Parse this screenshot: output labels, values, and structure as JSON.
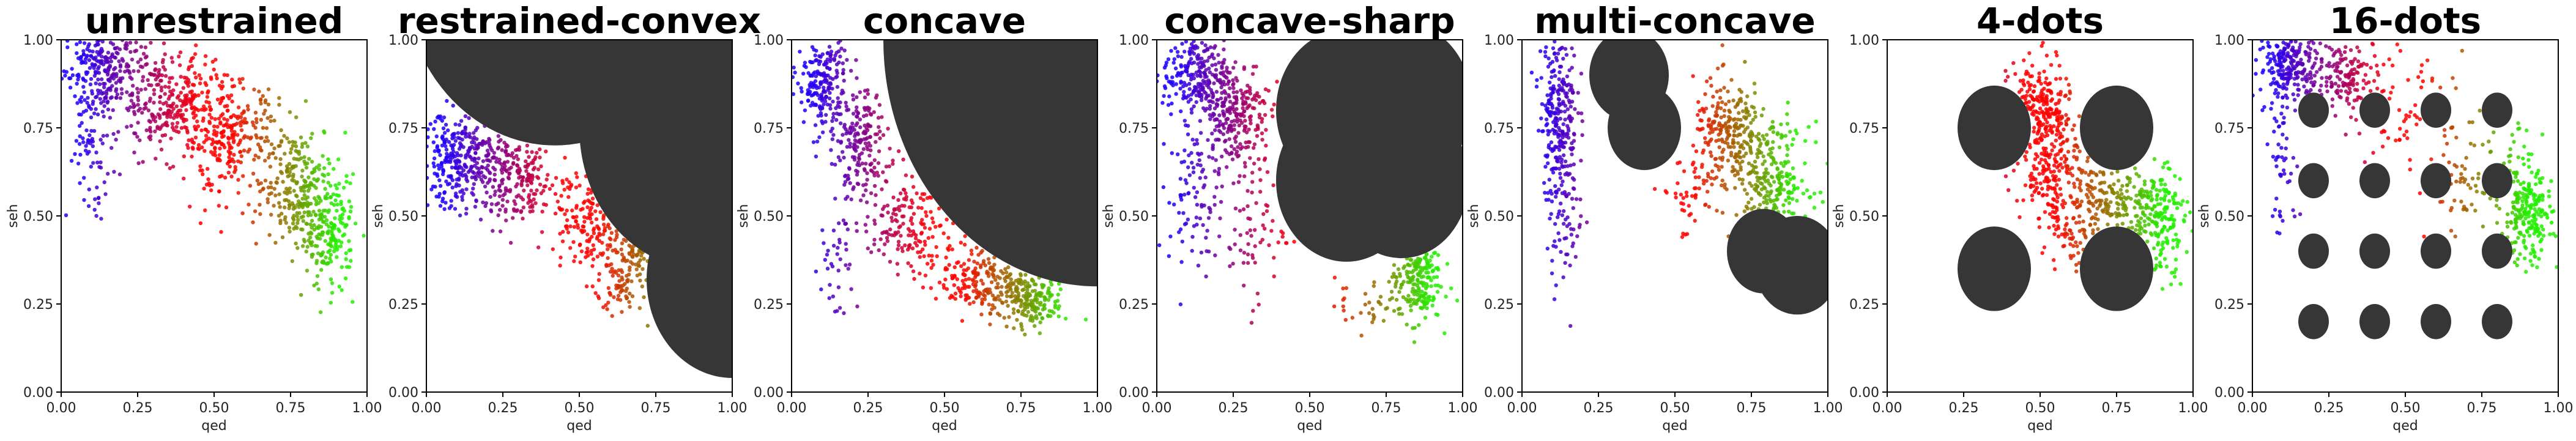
{
  "figure": {
    "background": "#ffffff"
  },
  "colors": {
    "low": "#1a00ff",
    "mid": "#ff0000",
    "high": "#22ee00",
    "obstacle": "#363636"
  },
  "chart_data": [
    {
      "type": "scatter",
      "title": "unrestrained",
      "xlabel": "qed",
      "ylabel": "seh",
      "xlim": [
        0,
        1
      ],
      "ylim": [
        0,
        1
      ],
      "xticks": [
        "0.00",
        "0.25",
        "0.50",
        "0.75",
        "1.00"
      ],
      "yticks": [
        "0.00",
        "0.25",
        "0.50",
        "0.75",
        "1.00"
      ],
      "grid": false,
      "cloud": [
        {
          "x": 0.15,
          "y": 0.92,
          "sx": 0.07,
          "sy": 0.06,
          "n": 260
        },
        {
          "x": 0.35,
          "y": 0.82,
          "sx": 0.08,
          "sy": 0.07,
          "n": 260
        },
        {
          "x": 0.55,
          "y": 0.72,
          "sx": 0.08,
          "sy": 0.08,
          "n": 280
        },
        {
          "x": 0.78,
          "y": 0.58,
          "sx": 0.06,
          "sy": 0.09,
          "n": 240
        },
        {
          "x": 0.88,
          "y": 0.45,
          "sx": 0.04,
          "sy": 0.08,
          "n": 180
        },
        {
          "x": 0.1,
          "y": 0.7,
          "sx": 0.04,
          "sy": 0.1,
          "n": 90
        }
      ],
      "obstacles": []
    },
    {
      "type": "scatter",
      "title": "restrained-convex",
      "xlabel": "qed",
      "ylabel": "seh",
      "xlim": [
        0,
        1
      ],
      "ylim": [
        0,
        1
      ],
      "xticks": [
        "0.00",
        "0.25",
        "0.50",
        "0.75",
        "1.00"
      ],
      "yticks": [
        "0.00",
        "0.25",
        "0.50",
        "0.75",
        "1.00"
      ],
      "grid": false,
      "cloud": [
        {
          "x": 0.12,
          "y": 0.66,
          "sx": 0.07,
          "sy": 0.07,
          "n": 320
        },
        {
          "x": 0.3,
          "y": 0.6,
          "sx": 0.07,
          "sy": 0.06,
          "n": 200
        },
        {
          "x": 0.52,
          "y": 0.5,
          "sx": 0.06,
          "sy": 0.07,
          "n": 160
        },
        {
          "x": 0.68,
          "y": 0.42,
          "sx": 0.05,
          "sy": 0.06,
          "n": 160
        },
        {
          "x": 0.65,
          "y": 0.3,
          "sx": 0.05,
          "sy": 0.04,
          "n": 80
        }
      ],
      "obstacles": [
        {
          "cx": 0.42,
          "cy": 1.2,
          "r": 0.5
        },
        {
          "cx": 0.75,
          "cy": 1.15,
          "r": 0.38
        },
        {
          "cx": 0.9,
          "cy": 0.75,
          "r": 0.4
        },
        {
          "cx": 1.0,
          "cy": 0.32,
          "r": 0.28
        }
      ]
    },
    {
      "type": "scatter",
      "title": "concave",
      "xlabel": "qed",
      "ylabel": "seh",
      "xlim": [
        0,
        1
      ],
      "ylim": [
        0,
        1
      ],
      "xticks": [
        "0.00",
        "0.25",
        "0.50",
        "0.75",
        "1.00"
      ],
      "yticks": [
        "0.00",
        "0.25",
        "0.50",
        "0.75",
        "1.00"
      ],
      "grid": false,
      "cloud": [
        {
          "x": 0.1,
          "y": 0.88,
          "sx": 0.04,
          "sy": 0.07,
          "n": 200
        },
        {
          "x": 0.22,
          "y": 0.7,
          "sx": 0.05,
          "sy": 0.08,
          "n": 200
        },
        {
          "x": 0.38,
          "y": 0.48,
          "sx": 0.06,
          "sy": 0.07,
          "n": 160
        },
        {
          "x": 0.62,
          "y": 0.33,
          "sx": 0.07,
          "sy": 0.05,
          "n": 200
        },
        {
          "x": 0.78,
          "y": 0.26,
          "sx": 0.06,
          "sy": 0.04,
          "n": 200
        },
        {
          "x": 0.15,
          "y": 0.35,
          "sx": 0.03,
          "sy": 0.1,
          "n": 40
        }
      ],
      "obstacles": [
        {
          "cx": 1.0,
          "cy": 1.0,
          "r": 0.7
        }
      ]
    },
    {
      "type": "scatter",
      "title": "concave-sharp",
      "xlabel": "qed",
      "ylabel": "seh",
      "xlim": [
        0,
        1
      ],
      "ylim": [
        0,
        1
      ],
      "xticks": [
        "0.00",
        "0.25",
        "0.50",
        "0.75",
        "1.00"
      ],
      "yticks": [
        "0.00",
        "0.25",
        "0.50",
        "0.75",
        "1.00"
      ],
      "grid": false,
      "cloud": [
        {
          "x": 0.12,
          "y": 0.9,
          "sx": 0.05,
          "sy": 0.06,
          "n": 220
        },
        {
          "x": 0.25,
          "y": 0.8,
          "sx": 0.06,
          "sy": 0.08,
          "n": 260
        },
        {
          "x": 0.12,
          "y": 0.55,
          "sx": 0.04,
          "sy": 0.1,
          "n": 80
        },
        {
          "x": 0.3,
          "y": 0.5,
          "sx": 0.06,
          "sy": 0.12,
          "n": 90
        },
        {
          "x": 0.85,
          "y": 0.32,
          "sx": 0.04,
          "sy": 0.06,
          "n": 200
        },
        {
          "x": 0.7,
          "y": 0.25,
          "sx": 0.06,
          "sy": 0.04,
          "n": 40
        }
      ],
      "obstacles": [
        {
          "cx": 0.62,
          "cy": 0.8,
          "r": 0.23
        },
        {
          "cx": 0.8,
          "cy": 0.82,
          "r": 0.23
        },
        {
          "cx": 0.62,
          "cy": 0.6,
          "r": 0.23
        },
        {
          "cx": 0.8,
          "cy": 0.6,
          "r": 0.22
        }
      ]
    },
    {
      "type": "scatter",
      "title": "multi-concave",
      "xlabel": "qed",
      "ylabel": "seh",
      "xlim": [
        0,
        1
      ],
      "ylim": [
        0,
        1
      ],
      "xticks": [
        "0.00",
        "0.25",
        "0.50",
        "0.75",
        "1.00"
      ],
      "yticks": [
        "0.00",
        "0.25",
        "0.50",
        "0.75",
        "1.00"
      ],
      "grid": false,
      "cloud": [
        {
          "x": 0.12,
          "y": 0.8,
          "sx": 0.03,
          "sy": 0.12,
          "n": 260
        },
        {
          "x": 0.14,
          "y": 0.5,
          "sx": 0.03,
          "sy": 0.1,
          "n": 70
        },
        {
          "x": 0.68,
          "y": 0.72,
          "sx": 0.06,
          "sy": 0.08,
          "n": 260
        },
        {
          "x": 0.82,
          "y": 0.6,
          "sx": 0.06,
          "sy": 0.08,
          "n": 240
        },
        {
          "x": 0.55,
          "y": 0.55,
          "sx": 0.05,
          "sy": 0.06,
          "n": 40
        }
      ],
      "obstacles": [
        {
          "cx": 0.35,
          "cy": 0.9,
          "r": 0.13
        },
        {
          "cx": 0.4,
          "cy": 0.75,
          "r": 0.12
        },
        {
          "cx": 0.79,
          "cy": 0.4,
          "r": 0.12
        },
        {
          "cx": 0.9,
          "cy": 0.36,
          "r": 0.14
        }
      ]
    },
    {
      "type": "scatter",
      "title": "4-dots",
      "xlabel": "qed",
      "ylabel": "seh",
      "xlim": [
        0,
        1
      ],
      "ylim": [
        0,
        1
      ],
      "xticks": [
        "0.00",
        "0.25",
        "0.50",
        "0.75",
        "1.00"
      ],
      "yticks": [
        "0.00",
        "0.25",
        "0.50",
        "0.75",
        "1.00"
      ],
      "grid": false,
      "cloud": [
        {
          "x": 0.5,
          "y": 0.8,
          "sx": 0.05,
          "sy": 0.07,
          "n": 240
        },
        {
          "x": 0.55,
          "y": 0.62,
          "sx": 0.06,
          "sy": 0.07,
          "n": 220
        },
        {
          "x": 0.75,
          "y": 0.55,
          "sx": 0.07,
          "sy": 0.06,
          "n": 200
        },
        {
          "x": 0.88,
          "y": 0.48,
          "sx": 0.05,
          "sy": 0.08,
          "n": 200
        },
        {
          "x": 0.6,
          "y": 0.42,
          "sx": 0.05,
          "sy": 0.04,
          "n": 60
        }
      ],
      "obstacles": [
        {
          "cx": 0.35,
          "cy": 0.75,
          "r": 0.12
        },
        {
          "cx": 0.75,
          "cy": 0.75,
          "r": 0.12
        },
        {
          "cx": 0.35,
          "cy": 0.35,
          "r": 0.12
        },
        {
          "cx": 0.75,
          "cy": 0.35,
          "r": 0.12
        }
      ]
    },
    {
      "type": "scatter",
      "title": "16-dots",
      "xlabel": "qed",
      "ylabel": "seh",
      "xlim": [
        0,
        1
      ],
      "ylim": [
        0,
        1
      ],
      "xticks": [
        "0.00",
        "0.25",
        "0.50",
        "0.75",
        "1.00"
      ],
      "yticks": [
        "0.00",
        "0.25",
        "0.50",
        "0.75",
        "1.00"
      ],
      "grid": false,
      "cloud": [
        {
          "x": 0.12,
          "y": 0.93,
          "sx": 0.05,
          "sy": 0.05,
          "n": 220
        },
        {
          "x": 0.3,
          "y": 0.9,
          "sx": 0.07,
          "sy": 0.05,
          "n": 160
        },
        {
          "x": 0.5,
          "y": 0.8,
          "sx": 0.1,
          "sy": 0.08,
          "n": 80
        },
        {
          "x": 0.75,
          "y": 0.6,
          "sx": 0.09,
          "sy": 0.08,
          "n": 100
        },
        {
          "x": 0.9,
          "y": 0.5,
          "sx": 0.04,
          "sy": 0.07,
          "n": 220
        },
        {
          "x": 0.1,
          "y": 0.65,
          "sx": 0.03,
          "sy": 0.1,
          "n": 50
        }
      ],
      "obstacles": [
        {
          "cx": 0.2,
          "cy": 0.8,
          "r": 0.05
        },
        {
          "cx": 0.4,
          "cy": 0.8,
          "r": 0.05
        },
        {
          "cx": 0.6,
          "cy": 0.8,
          "r": 0.05
        },
        {
          "cx": 0.8,
          "cy": 0.8,
          "r": 0.05
        },
        {
          "cx": 0.2,
          "cy": 0.6,
          "r": 0.05
        },
        {
          "cx": 0.4,
          "cy": 0.6,
          "r": 0.05
        },
        {
          "cx": 0.6,
          "cy": 0.6,
          "r": 0.05
        },
        {
          "cx": 0.8,
          "cy": 0.6,
          "r": 0.05
        },
        {
          "cx": 0.2,
          "cy": 0.4,
          "r": 0.05
        },
        {
          "cx": 0.4,
          "cy": 0.4,
          "r": 0.05
        },
        {
          "cx": 0.6,
          "cy": 0.4,
          "r": 0.05
        },
        {
          "cx": 0.8,
          "cy": 0.4,
          "r": 0.05
        },
        {
          "cx": 0.2,
          "cy": 0.2,
          "r": 0.05
        },
        {
          "cx": 0.4,
          "cy": 0.2,
          "r": 0.05
        },
        {
          "cx": 0.6,
          "cy": 0.2,
          "r": 0.05
        },
        {
          "cx": 0.8,
          "cy": 0.2,
          "r": 0.05
        }
      ]
    }
  ]
}
